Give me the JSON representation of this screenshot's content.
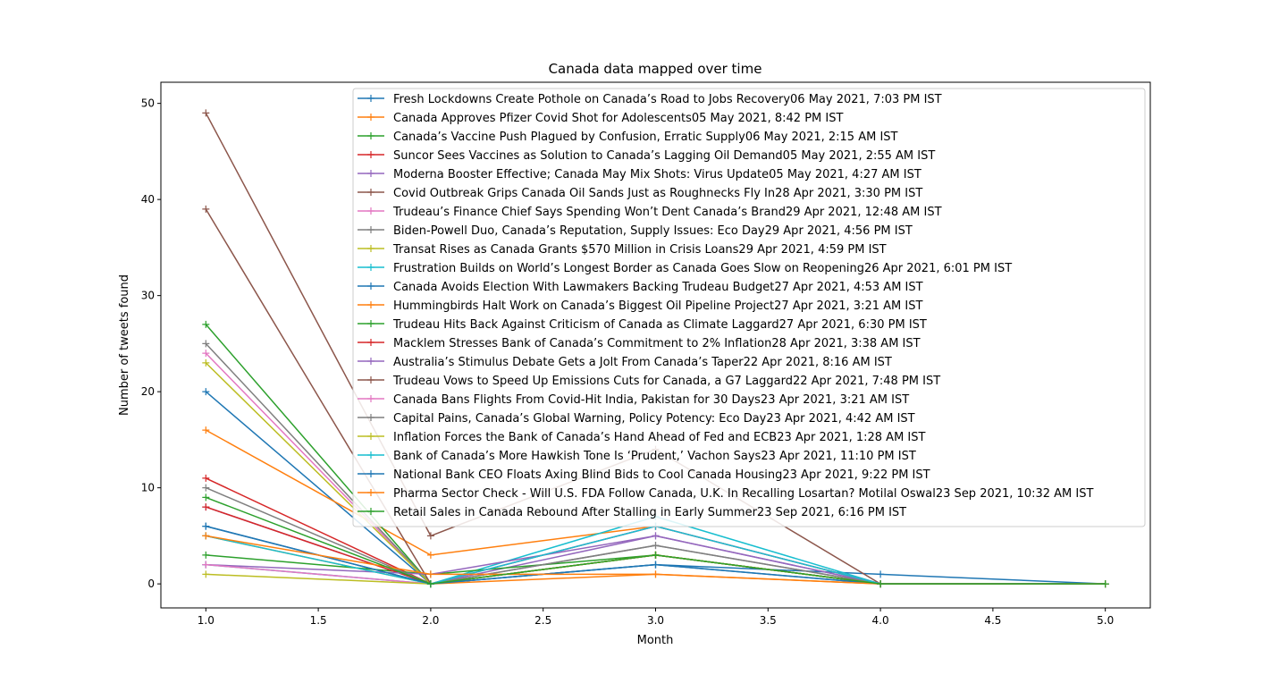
{
  "chart_data": {
    "type": "line",
    "title": "Canada data mapped over time",
    "xlabel": "Month",
    "ylabel": "Number of tweets found",
    "xlim": [
      0.8,
      5.2
    ],
    "ylim": [
      -2.5,
      52.2
    ],
    "xticks": [
      1.0,
      1.5,
      2.0,
      2.5,
      3.0,
      3.5,
      4.0,
      4.5,
      5.0
    ],
    "xtick_labels": [
      "1.0",
      "1.5",
      "2.0",
      "2.5",
      "3.0",
      "3.5",
      "4.0",
      "4.5",
      "5.0"
    ],
    "yticks": [
      0,
      10,
      20,
      30,
      40,
      50
    ],
    "ytick_labels": [
      "0",
      "10",
      "20",
      "30",
      "40",
      "50"
    ],
    "grid": false,
    "legend_position": "top-right",
    "marker": "+",
    "colors": [
      "#1f77b4",
      "#ff7f0e",
      "#2ca02c",
      "#d62728",
      "#9467bd",
      "#8c564b",
      "#e377c2",
      "#7f7f7f",
      "#bcbd22",
      "#17becf"
    ],
    "series": [
      {
        "name": "Fresh Lockdowns Create Pothole on Canada’s Road to Jobs Recovery06 May 2021, 7:03 PM IST",
        "x": [
          1,
          2,
          3,
          4,
          5
        ],
        "y": [
          20,
          0,
          2,
          1,
          0
        ]
      },
      {
        "name": "Canada Approves Pfizer Covid Shot for Adolescents05 May 2021, 8:42 PM IST",
        "x": [
          1,
          2,
          3,
          4,
          5
        ],
        "y": [
          16,
          3,
          6,
          0,
          0
        ]
      },
      {
        "name": "Canada’s Vaccine Push Plagued by Confusion, Erratic Supply06 May 2021, 2:15 AM IST",
        "x": [
          1,
          2,
          3,
          4,
          5
        ],
        "y": [
          27,
          0,
          3,
          0,
          0
        ]
      },
      {
        "name": "Suncor Sees Vaccines as Solution to Canada’s Lagging Oil Demand05 May 2021, 2:55 AM IST",
        "x": [
          1,
          2,
          3,
          4,
          5
        ],
        "y": [
          11,
          0,
          3,
          0,
          0
        ]
      },
      {
        "name": "Moderna Booster Effective; Canada May Mix Shots: Virus Update05 May 2021, 4:27 AM IST",
        "x": [
          1,
          2,
          3,
          4,
          5
        ],
        "y": [
          8,
          0,
          5,
          0,
          0
        ]
      },
      {
        "name": "Covid Outbreak Grips Canada Oil Sands Just as Roughnecks Fly In28 Apr 2021, 3:30 PM IST",
        "x": [
          1,
          2,
          3,
          4,
          5
        ],
        "y": [
          49,
          5,
          14,
          0,
          0
        ]
      },
      {
        "name": "Trudeau’s Finance Chief Says Spending Won’t Dent Canada’s Brand29 Apr 2021, 12:48 AM IST",
        "x": [
          1,
          2,
          3,
          4,
          5
        ],
        "y": [
          24,
          0,
          6,
          0,
          0
        ]
      },
      {
        "name": "Biden-Powell Duo, Canada’s Reputation, Supply Issues: Eco Day29 Apr 2021, 4:56 PM IST",
        "x": [
          1,
          2,
          3,
          4,
          5
        ],
        "y": [
          25,
          0,
          4,
          0,
          0
        ]
      },
      {
        "name": "Transat Rises as Canada Grants $570 Million in Crisis Loans29 Apr 2021, 4:59 PM IST",
        "x": [
          1,
          2,
          3,
          4,
          5
        ],
        "y": [
          23,
          0,
          3,
          0,
          0
        ]
      },
      {
        "name": "Frustration Builds on World’s Longest Border as Canada Goes Slow on Reopening26 Apr 2021, 6:01 PM IST",
        "x": [
          1,
          2,
          3,
          4,
          5
        ],
        "y": [
          2,
          0,
          7,
          0,
          0
        ]
      },
      {
        "name": "Canada Avoids Election With Lawmakers Backing Trudeau Budget27 Apr 2021, 4:53 AM IST",
        "x": [
          1,
          2,
          3,
          4,
          5
        ],
        "y": [
          6,
          0,
          2,
          0,
          0
        ]
      },
      {
        "name": "Hummingbirds Halt Work on Canada’s Biggest Oil Pipeline Project27 Apr 2021, 3:21 AM IST",
        "x": [
          1,
          2,
          3,
          4,
          5
        ],
        "y": [
          5,
          0,
          1,
          0,
          0
        ]
      },
      {
        "name": "Trudeau Hits Back Against Criticism of Canada as Climate Laggard27 Apr 2021, 6:30 PM IST",
        "x": [
          1,
          2,
          3,
          4,
          5
        ],
        "y": [
          3,
          1,
          3,
          0,
          0
        ]
      },
      {
        "name": "Macklem Stresses Bank of Canada’s Commitment to 2% Inflation28 Apr 2021, 3:38 AM IST",
        "x": [
          1,
          2,
          3,
          4,
          5
        ],
        "y": [
          8,
          0,
          3,
          0,
          0
        ]
      },
      {
        "name": "Australia’s Stimulus Debate Gets a Jolt From Canada’s Taper22 Apr 2021, 8:16 AM IST",
        "x": [
          1,
          2,
          3,
          4,
          5
        ],
        "y": [
          2,
          1,
          5,
          0,
          0
        ]
      },
      {
        "name": "Trudeau Vows to Speed Up Emissions Cuts for Canada, a G7 Laggard22 Apr 2021, 7:48 PM IST",
        "x": [
          1,
          2,
          3,
          4,
          5
        ],
        "y": [
          39,
          0,
          6,
          0,
          0
        ]
      },
      {
        "name": "Canada Bans Flights From Covid-Hit India, Pakistan for 30 Days23 Apr 2021, 3:21 AM IST",
        "x": [
          1,
          2,
          3,
          4,
          5
        ],
        "y": [
          2,
          0,
          6,
          0,
          0
        ]
      },
      {
        "name": "Capital Pains, Canada’s Global Warning, Policy Potency: Eco Day23 Apr 2021, 4:42 AM IST",
        "x": [
          1,
          2,
          3,
          4,
          5
        ],
        "y": [
          10,
          0,
          4,
          0,
          0
        ]
      },
      {
        "name": "Inflation Forces the Bank of Canada’s Hand Ahead of Fed and ECB23 Apr 2021, 1:28 AM IST",
        "x": [
          1,
          2,
          3,
          4,
          5
        ],
        "y": [
          1,
          0,
          3,
          0,
          0
        ]
      },
      {
        "name": "Bank of Canada’s More Hawkish Tone Is ‘Prudent,’ Vachon Says23 Apr 2021, 11:10 PM IST",
        "x": [
          1,
          2,
          3,
          4,
          5
        ],
        "y": [
          5,
          0,
          6,
          0,
          0
        ]
      },
      {
        "name": "National Bank CEO Floats Axing Blind Bids to Cool Canada Housing23 Apr 2021, 9:22 PM IST",
        "x": [
          1,
          2,
          3,
          4,
          5
        ],
        "y": [
          6,
          0,
          2,
          0,
          0
        ]
      },
      {
        "name": "Pharma Sector Check - Will U.S. FDA Follow Canada, U.K. In Recalling Losartan? Motilal Oswal23 Sep 2021, 10:32 AM IST",
        "x": [
          1,
          2,
          3,
          4,
          5
        ],
        "y": [
          5,
          1,
          1,
          0,
          0
        ]
      },
      {
        "name": "Retail Sales in Canada Rebound After Stalling in Early Summer23 Sep 2021, 6:16 PM IST",
        "x": [
          1,
          2,
          3,
          4,
          5
        ],
        "y": [
          9,
          0,
          3,
          0,
          0
        ]
      }
    ]
  }
}
